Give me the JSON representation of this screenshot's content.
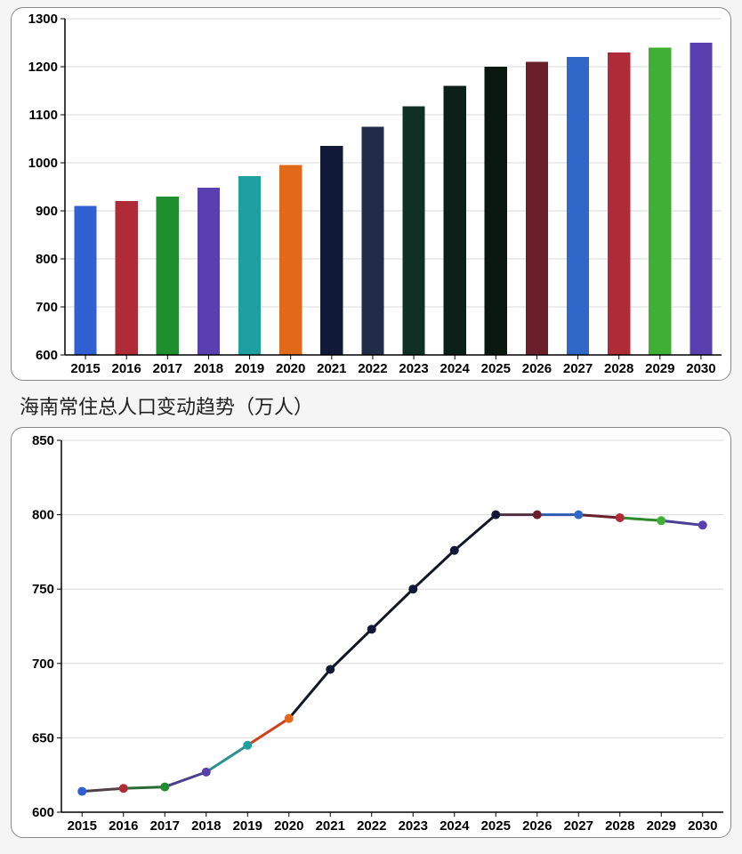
{
  "bar_chart": {
    "type": "bar",
    "categories": [
      "2015",
      "2016",
      "2017",
      "2018",
      "2019",
      "2020",
      "2021",
      "2022",
      "2023",
      "2024",
      "2025",
      "2026",
      "2027",
      "2028",
      "2029",
      "2030"
    ],
    "values": [
      910,
      920,
      930,
      948,
      972,
      995,
      1035,
      1075,
      1118,
      1160,
      1200,
      1210,
      1220,
      1230,
      1240,
      1250
    ],
    "bar_colors": [
      "#2f5fd0",
      "#b02b38",
      "#1f8f2e",
      "#5a3fb0",
      "#1fa0a0",
      "#e06a1a",
      "#101a38",
      "#202c48",
      "#103025",
      "#0a2018",
      "#0a1810",
      "#6b1f2a",
      "#2f68c8",
      "#b02b38",
      "#3fb035",
      "#5a3fb0"
    ],
    "ylim": [
      600,
      1300
    ],
    "ytick_step": 100,
    "ytick_labels": [
      "600",
      "700",
      "800",
      "900",
      "1000",
      "1100",
      "1200",
      "1300"
    ],
    "background_color": "#ffffff",
    "grid_color": "#d8d8d8",
    "axis_color": "#000000",
    "bar_width": 0.55,
    "label_fontsize": 15,
    "label_fontweight": "bold",
    "panel_border_color": "#888888",
    "panel_border_radius": 14
  },
  "caption_1": "海南常住总人口变动趋势（万人）",
  "line_chart": {
    "type": "line",
    "categories": [
      "2015",
      "2016",
      "2017",
      "2018",
      "2019",
      "2020",
      "2021",
      "2022",
      "2023",
      "2024",
      "2025",
      "2026",
      "2027",
      "2028",
      "2029",
      "2030"
    ],
    "values": [
      614,
      616,
      617,
      627,
      645,
      663,
      696,
      723,
      750,
      776,
      800,
      800,
      800,
      798,
      796,
      793
    ],
    "marker_colors": [
      "#2f5fd0",
      "#b02b38",
      "#1f8f2e",
      "#5a3fb0",
      "#1fa0a0",
      "#e06a1a",
      "#101a38",
      "#101a38",
      "#101a38",
      "#101a38",
      "#101a38",
      "#6b1f2a",
      "#2f68c8",
      "#b02b38",
      "#3fb035",
      "#5a3fb0"
    ],
    "segment_colors": [
      "#504048",
      "#2a6a3a",
      "#4a3f90",
      "#2a9090",
      "#d03f1a",
      "#101828",
      "#101828",
      "#101828",
      "#101828",
      "#101828",
      "#503040",
      "#2f5bb0",
      "#6b1f2a",
      "#2a8a2a",
      "#4a3f90"
    ],
    "ylim": [
      600,
      850
    ],
    "ytick_step": 50,
    "ytick_labels": [
      "600",
      "650",
      "700",
      "750",
      "800",
      "850"
    ],
    "background_color": "#ffffff",
    "grid_color": "#d8d8d8",
    "axis_color": "#000000",
    "line_width": 3,
    "marker_size": 5,
    "label_fontsize": 15,
    "label_fontweight": "bold",
    "panel_border_color": "#888888",
    "panel_border_radius": 14
  }
}
